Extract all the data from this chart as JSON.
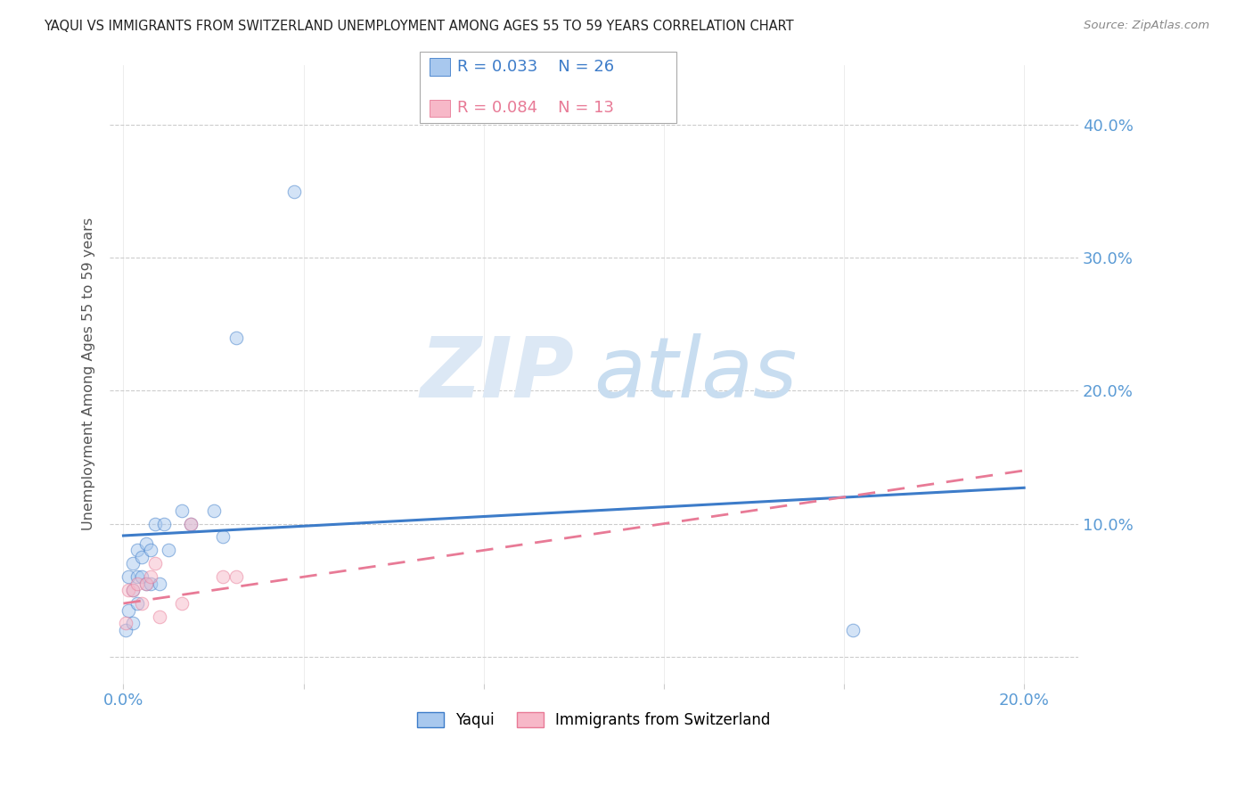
{
  "title": "YAQUI VS IMMIGRANTS FROM SWITZERLAND UNEMPLOYMENT AMONG AGES 55 TO 59 YEARS CORRELATION CHART",
  "source": "Source: ZipAtlas.com",
  "xlim": [
    -0.003,
    0.212
  ],
  "ylim": [
    -0.02,
    0.445
  ],
  "yaqui_x": [
    0.0005,
    0.001,
    0.001,
    0.002,
    0.002,
    0.002,
    0.003,
    0.003,
    0.003,
    0.004,
    0.004,
    0.005,
    0.005,
    0.006,
    0.006,
    0.007,
    0.008,
    0.009,
    0.01,
    0.013,
    0.015,
    0.02,
    0.022,
    0.025,
    0.038,
    0.162
  ],
  "yaqui_y": [
    0.02,
    0.035,
    0.06,
    0.025,
    0.05,
    0.07,
    0.04,
    0.06,
    0.08,
    0.06,
    0.075,
    0.055,
    0.085,
    0.055,
    0.08,
    0.1,
    0.055,
    0.1,
    0.08,
    0.11,
    0.1,
    0.11,
    0.09,
    0.24,
    0.35,
    0.02
  ],
  "swiss_x": [
    0.0005,
    0.001,
    0.002,
    0.003,
    0.004,
    0.005,
    0.006,
    0.007,
    0.008,
    0.013,
    0.015,
    0.022,
    0.025
  ],
  "swiss_y": [
    0.025,
    0.05,
    0.05,
    0.055,
    0.04,
    0.055,
    0.06,
    0.07,
    0.03,
    0.04,
    0.1,
    0.06,
    0.06
  ],
  "yaqui_color": "#a8c8ee",
  "swiss_color": "#f7b8c8",
  "yaqui_line_color": "#3d7cc9",
  "swiss_line_color": "#e87a96",
  "yaqui_reg_slope": 0.18,
  "yaqui_reg_intercept": 0.091,
  "swiss_reg_slope": 0.5,
  "swiss_reg_intercept": 0.04,
  "background_color": "#ffffff",
  "grid_color": "#cccccc",
  "watermark_zip": "ZIP",
  "watermark_atlas": "atlas",
  "watermark_color": "#ddeeff",
  "legend_r_yaqui": "R = 0.033",
  "legend_n_yaqui": "N = 26",
  "legend_r_swiss": "R = 0.084",
  "legend_n_swiss": "N = 13",
  "legend_label_yaqui": "Yaqui",
  "legend_label_swiss": "Immigrants from Switzerland",
  "ylabel": "Unemployment Among Ages 55 to 59 years",
  "title_color": "#222222",
  "axis_label_color": "#5b9bd5",
  "dot_size": 110,
  "dot_alpha": 0.5,
  "ytick_positions": [
    0.0,
    0.1,
    0.2,
    0.3,
    0.4
  ],
  "ytick_labels": [
    "",
    "10.0%",
    "20.0%",
    "30.0%",
    "40.0%"
  ],
  "xtick_positions": [
    0.0,
    0.04,
    0.08,
    0.12,
    0.16,
    0.2
  ],
  "xtick_labels_show": {
    "0.0": "0.0%",
    "0.2": "20.0%"
  }
}
